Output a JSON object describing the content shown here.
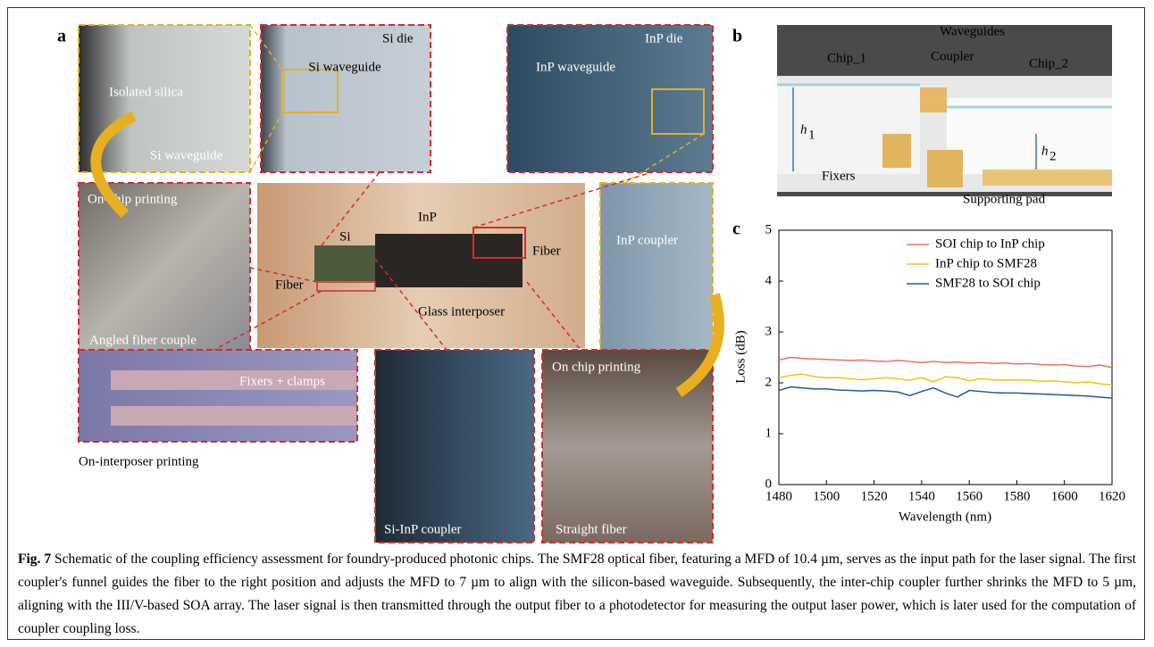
{
  "figure": {
    "panel_a": {
      "label": "a",
      "photos": [
        {
          "labels": [
            "Isolated silica",
            "Si waveguide"
          ]
        },
        {
          "labels": [
            "Si die",
            "Si waveguide"
          ]
        },
        {
          "labels": [
            "InP die",
            "InP waveguide"
          ]
        },
        {
          "labels": [
            "On-chip printing",
            "Angled fiber couple"
          ]
        },
        {
          "labels": [
            "Si",
            "InP",
            "Fiber",
            "Fiber",
            "Glass interposer"
          ]
        },
        {
          "labels": [
            "InP coupler"
          ]
        },
        {
          "labels": [
            "Fixers + clamps"
          ]
        },
        {
          "labels": [
            "Si-InP coupler"
          ]
        },
        {
          "labels": [
            "On chip printing",
            "Straight fiber"
          ]
        }
      ],
      "note": "On-interposer printing"
    },
    "panel_b": {
      "label": "b",
      "labels": [
        "Chip_1",
        "Waveguides",
        "Coupler",
        "Chip_2",
        "Fixers",
        "Supporting pad"
      ],
      "heights": [
        {
          "symbol": "h",
          "subscript": "1"
        },
        {
          "symbol": "h",
          "subscript": "2"
        }
      ]
    },
    "panel_c": {
      "label": "c"
    },
    "caption": {
      "label": "Fig. 7",
      "text": "Schematic of the coupling efficiency assessment for foundry-produced photonic chips. The SMF28 optical fiber, featuring a MFD of 10.4 µm, serves as the input path for the laser signal. The first coupler's funnel guides the fiber to the right position and adjusts the MFD to 7 µm to align with the silicon-based waveguide. Subsequently, the inter-chip coupler further shrinks the MFD to 5 µm, aligning with the III/V-based SOA array. The laser signal is then transmitted through the output fiber to a photodetector for measuring the output laser power, which is later used for the computation of coupler coupling loss."
    }
  },
  "chart_data": {
    "type": "line",
    "x_label": "Wavelength (nm)",
    "y_label": "Loss (dB)",
    "x": [
      1480,
      1485,
      1490,
      1495,
      1500,
      1505,
      1510,
      1515,
      1520,
      1525,
      1530,
      1535,
      1540,
      1545,
      1550,
      1555,
      1560,
      1565,
      1570,
      1575,
      1580,
      1585,
      1590,
      1595,
      1600,
      1605,
      1610,
      1615,
      1620
    ],
    "series": [
      {
        "name": "SOI chip to InP chip",
        "color": "#e8735a",
        "values": [
          2.45,
          2.5,
          2.48,
          2.47,
          2.46,
          2.45,
          2.44,
          2.45,
          2.43,
          2.42,
          2.44,
          2.42,
          2.4,
          2.42,
          2.4,
          2.41,
          2.39,
          2.4,
          2.38,
          2.39,
          2.37,
          2.38,
          2.36,
          2.35,
          2.36,
          2.33,
          2.32,
          2.35,
          2.3
        ]
      },
      {
        "name": "InP chip to SMF28",
        "color": "#f2c012",
        "values": [
          2.1,
          2.15,
          2.17,
          2.12,
          2.1,
          2.1,
          2.08,
          2.06,
          2.08,
          2.1,
          2.08,
          2.05,
          2.1,
          2.02,
          2.12,
          2.1,
          2.04,
          2.08,
          2.06,
          2.05,
          2.06,
          2.05,
          2.03,
          2.04,
          2.02,
          2.0,
          2.02,
          1.98,
          1.96
        ]
      },
      {
        "name": "SMF28 to SOI chip",
        "color": "#1f5c99",
        "values": [
          1.85,
          1.92,
          1.9,
          1.88,
          1.88,
          1.86,
          1.85,
          1.84,
          1.85,
          1.84,
          1.82,
          1.75,
          1.83,
          1.9,
          1.8,
          1.72,
          1.85,
          1.83,
          1.81,
          1.8,
          1.8,
          1.79,
          1.78,
          1.77,
          1.76,
          1.75,
          1.74,
          1.72,
          1.7
        ]
      }
    ],
    "xlim": [
      1480,
      1620
    ],
    "xticks": [
      1480,
      1500,
      1520,
      1540,
      1560,
      1580,
      1600,
      1620
    ],
    "ylim": [
      0,
      5
    ],
    "yticks": [
      0,
      1,
      2,
      3,
      4,
      5
    ],
    "legend": "upper right",
    "grid": false
  }
}
